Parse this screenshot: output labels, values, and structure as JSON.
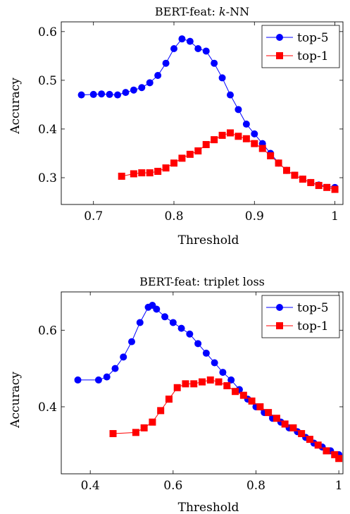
{
  "chart_data": [
    {
      "type": "line",
      "title": "BERT-feat: k-NN",
      "title_prefix": "BERT-feat: ",
      "title_math": "k",
      "title_suffix": "-NN",
      "xlabel": "Threshold",
      "ylabel": "Accuracy",
      "xlim": [
        0.66,
        1.01
      ],
      "ylim": [
        0.245,
        0.62
      ],
      "xticks": [
        0.7,
        0.8,
        0.9,
        1.0
      ],
      "xtick_labels": [
        "0.7",
        "0.8",
        "0.9",
        "1"
      ],
      "yticks": [
        0.3,
        0.4,
        0.5,
        0.6
      ],
      "ytick_labels": [
        "0.3",
        "0.4",
        "0.5",
        "0.6"
      ],
      "grid": false,
      "legend_position": "top-right",
      "series": [
        {
          "name": "top-5",
          "color": "#0000ff",
          "marker": "circle",
          "x": [
            0.685,
            0.7,
            0.71,
            0.72,
            0.73,
            0.74,
            0.75,
            0.76,
            0.77,
            0.78,
            0.79,
            0.8,
            0.81,
            0.82,
            0.83,
            0.84,
            0.85,
            0.86,
            0.87,
            0.88,
            0.89,
            0.9,
            0.91,
            0.92,
            0.93,
            0.94,
            0.95,
            0.96,
            0.97,
            0.98,
            1.0
          ],
          "y": [
            0.47,
            0.471,
            0.472,
            0.471,
            0.47,
            0.475,
            0.48,
            0.485,
            0.495,
            0.51,
            0.535,
            0.565,
            0.585,
            0.58,
            0.565,
            0.56,
            0.535,
            0.505,
            0.47,
            0.44,
            0.41,
            0.39,
            0.37,
            0.35,
            0.33,
            0.315,
            0.305,
            0.297,
            0.29,
            0.285,
            0.28
          ]
        },
        {
          "name": "top-1",
          "color": "#ff0000",
          "marker": "square",
          "x": [
            0.735,
            0.75,
            0.76,
            0.77,
            0.78,
            0.79,
            0.8,
            0.81,
            0.82,
            0.83,
            0.84,
            0.85,
            0.86,
            0.87,
            0.88,
            0.89,
            0.9,
            0.91,
            0.92,
            0.93,
            0.94,
            0.95,
            0.96,
            0.97,
            0.98,
            0.99,
            1.0
          ],
          "y": [
            0.303,
            0.308,
            0.31,
            0.31,
            0.313,
            0.32,
            0.33,
            0.34,
            0.348,
            0.355,
            0.368,
            0.378,
            0.387,
            0.392,
            0.385,
            0.38,
            0.37,
            0.36,
            0.345,
            0.33,
            0.315,
            0.305,
            0.297,
            0.29,
            0.284,
            0.28,
            0.276
          ]
        }
      ]
    },
    {
      "type": "line",
      "title": "BERT-feat: triplet loss",
      "xlabel": "Threshold",
      "ylabel": "Accuracy",
      "xlim": [
        0.33,
        1.01
      ],
      "ylim": [
        0.225,
        0.7
      ],
      "xticks": [
        0.4,
        0.6,
        0.8,
        1.0
      ],
      "xtick_labels": [
        "0.4",
        "0.6",
        "0.8",
        "1"
      ],
      "yticks": [
        0.4,
        0.6
      ],
      "ytick_labels": [
        "0.4",
        "0.6"
      ],
      "grid": false,
      "legend_position": "top-right",
      "series": [
        {
          "name": "top-5",
          "color": "#0000ff",
          "marker": "circle",
          "x": [
            0.37,
            0.42,
            0.44,
            0.46,
            0.48,
            0.5,
            0.52,
            0.54,
            0.55,
            0.56,
            0.58,
            0.6,
            0.62,
            0.64,
            0.66,
            0.68,
            0.7,
            0.72,
            0.74,
            0.76,
            0.78,
            0.8,
            0.82,
            0.84,
            0.86,
            0.88,
            0.9,
            0.92,
            0.94,
            0.96,
            0.98,
            1.0
          ],
          "y": [
            0.47,
            0.47,
            0.478,
            0.5,
            0.53,
            0.57,
            0.62,
            0.66,
            0.665,
            0.655,
            0.635,
            0.62,
            0.605,
            0.59,
            0.565,
            0.54,
            0.515,
            0.49,
            0.47,
            0.445,
            0.42,
            0.4,
            0.385,
            0.37,
            0.36,
            0.345,
            0.335,
            0.32,
            0.305,
            0.295,
            0.285,
            0.275
          ]
        },
        {
          "name": "top-1",
          "color": "#ff0000",
          "marker": "square",
          "x": [
            0.455,
            0.51,
            0.53,
            0.55,
            0.57,
            0.59,
            0.61,
            0.63,
            0.65,
            0.67,
            0.69,
            0.71,
            0.73,
            0.75,
            0.77,
            0.79,
            0.81,
            0.83,
            0.85,
            0.87,
            0.89,
            0.91,
            0.93,
            0.95,
            0.97,
            0.99,
            1.0
          ],
          "y": [
            0.33,
            0.333,
            0.345,
            0.36,
            0.39,
            0.42,
            0.45,
            0.46,
            0.46,
            0.465,
            0.47,
            0.465,
            0.455,
            0.44,
            0.43,
            0.415,
            0.4,
            0.385,
            0.37,
            0.355,
            0.345,
            0.33,
            0.315,
            0.3,
            0.285,
            0.275,
            0.265
          ]
        }
      ]
    }
  ]
}
